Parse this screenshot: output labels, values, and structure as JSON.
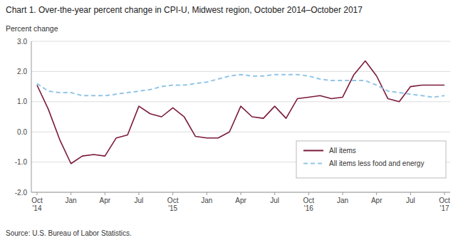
{
  "chart_data": {
    "type": "line",
    "title": "Chart 1. Over-the-year percent change in CPI-U, Midwest region, October 2014–October 2017",
    "ylabel": "Percent change",
    "annotations": [
      "Source: U.S. Bureau of Labor Statistics."
    ],
    "categories": [
      "Oct\n'14",
      null,
      null,
      "Jan",
      null,
      null,
      "Apr",
      null,
      null,
      "Jul",
      null,
      null,
      "Oct\n'15",
      null,
      null,
      "Jan",
      null,
      null,
      "Apr",
      null,
      null,
      "Jul",
      null,
      null,
      "Oct\n'16",
      null,
      null,
      "Jan",
      null,
      null,
      "Apr",
      null,
      null,
      "Jul",
      null,
      null,
      "Oct\n'17"
    ],
    "series": [
      {
        "name": "All items",
        "color": "#7B1A3A",
        "line_style": "solid",
        "values": [
          1.55,
          0.75,
          -0.25,
          -1.05,
          -0.8,
          -0.75,
          -0.8,
          -0.2,
          -0.1,
          0.85,
          0.6,
          0.5,
          0.8,
          0.5,
          -0.15,
          -0.2,
          -0.2,
          0.0,
          0.85,
          0.5,
          0.45,
          0.85,
          0.45,
          1.1,
          1.15,
          1.2,
          1.1,
          1.15,
          1.9,
          2.35,
          1.85,
          1.1,
          1.0,
          1.5,
          1.55,
          1.55,
          1.55
        ]
      },
      {
        "name": "All items less food and energy",
        "color": "#92C5E8",
        "line_style": "dashed",
        "values": [
          1.6,
          1.35,
          1.3,
          1.3,
          1.2,
          1.2,
          1.2,
          1.25,
          1.3,
          1.35,
          1.4,
          1.5,
          1.55,
          1.55,
          1.6,
          1.65,
          1.75,
          1.85,
          1.9,
          1.85,
          1.85,
          1.9,
          1.9,
          1.9,
          1.85,
          1.75,
          1.7,
          1.7,
          1.7,
          1.7,
          1.55,
          1.35,
          1.3,
          1.25,
          1.2,
          1.15,
          1.2
        ]
      }
    ],
    "ylim": [
      -2.0,
      3.0
    ],
    "yticks": [
      {
        "value": -2.0,
        "label": "-2.0"
      },
      {
        "value": -1.0,
        "label": "-1.0"
      },
      {
        "value": 0.0,
        "label": "0.0"
      },
      {
        "value": 1.0,
        "label": "1.0"
      },
      {
        "value": 2.0,
        "label": "2.0"
      },
      {
        "value": 3.0,
        "label": "3.0"
      }
    ],
    "grid": true,
    "legend": "lower right"
  }
}
